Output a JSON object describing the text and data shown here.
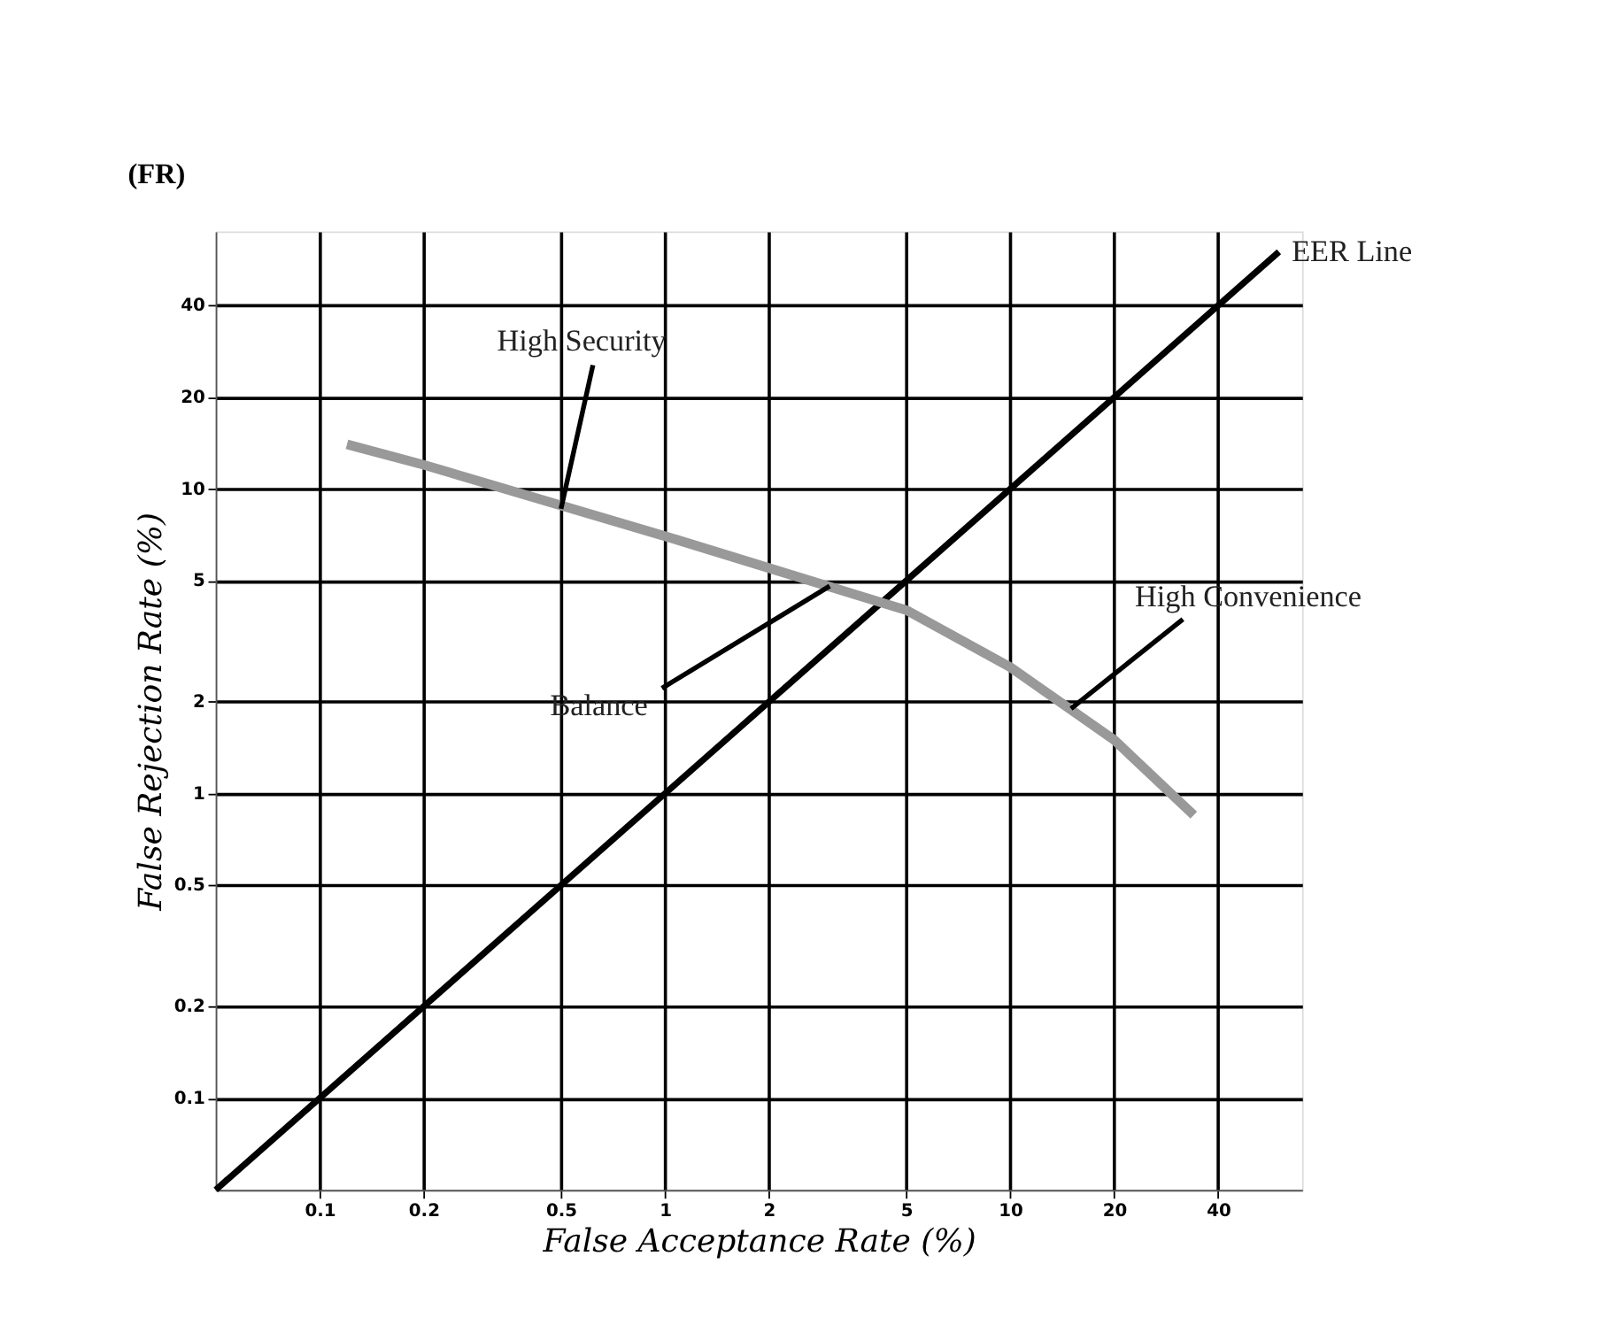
{
  "chart_data": {
    "type": "line",
    "xlabel": "False Acceptance Rate (%)",
    "ylabel": "False Rejection Rate (%)",
    "log": "xy",
    "xlim": [
      0.05,
      70
    ],
    "ylim": [
      0.05,
      70
    ],
    "xticks": [
      0.1,
      0.2,
      0.5,
      1,
      2,
      5,
      10,
      20,
      40
    ],
    "yticks": [
      0.1,
      0.2,
      0.5,
      1,
      2,
      5,
      10,
      20,
      40
    ],
    "grid": true,
    "marker": "none",
    "line_style": "solid",
    "series": [
      {
        "color": "#000000",
        "x": [
          0.05,
          60
        ],
        "values": [
          0.05,
          60
        ]
      },
      {
        "color": "#999999",
        "x": [
          0.12,
          0.2,
          1,
          2,
          5,
          10,
          20,
          34
        ],
        "values": [
          14,
          12,
          7,
          5.5,
          4,
          2.6,
          1.5,
          0.85
        ]
      }
    ],
    "annotations": [
      "(FR)",
      {
        "text": "EER Line",
        "x": 60,
        "y": 60
      },
      {
        "text": "High Security",
        "x": 0.5,
        "y": 8.6
      },
      {
        "text": "Balance",
        "x": 3,
        "y": 4.8
      },
      {
        "text": "High Convenience",
        "x": 15,
        "y": 1.9
      }
    ]
  }
}
